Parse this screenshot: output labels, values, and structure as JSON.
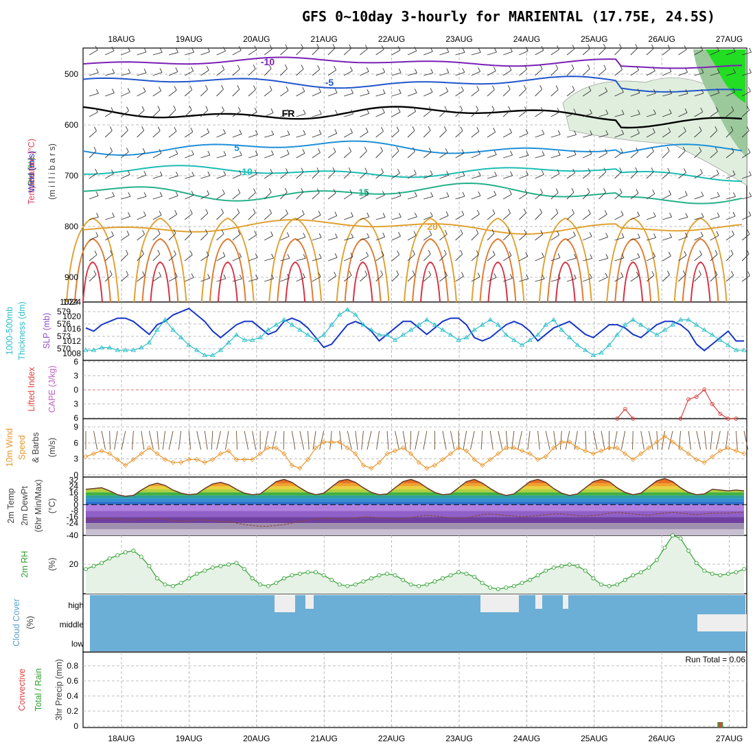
{
  "title": "GFS 0~10day 3-hourly for MARIENTAL (17.75E, 24.5S)",
  "days": [
    "18AUG",
    "19AUG",
    "20AUG",
    "21AUG",
    "22AUG",
    "23AUG",
    "24AUG",
    "25AUG",
    "26AUG",
    "27AUG"
  ],
  "colors": {
    "grid": "#a8a8a8",
    "slp": "#1535c8",
    "thickness": "#2bbfc9",
    "lifted_index": "#d94040",
    "wind_speed": "#e8952a",
    "wind_barb": "#6b4a2a",
    "rh": "#2e9e2e",
    "rh_fill": "#e6f2e6",
    "cloud": "#6baed6",
    "cloud_gap": "#eeeeee"
  },
  "panels": {
    "upper": {
      "labels": [
        "RH (%)",
        "Temperature (°C)",
        "Wind (m/s)",
        "(m i l l i b a r s)"
      ],
      "label_colors": [
        "#20a020",
        "#e0405a",
        "#3030c0",
        "#404040"
      ],
      "yticks": [
        "500",
        "600",
        "700",
        "800",
        "900",
        "1024"
      ],
      "contours": [
        {
          "label": "-10",
          "color": "#7a1fb5",
          "level": -10
        },
        {
          "label": "-5",
          "color": "#1f55cc",
          "level": -5
        },
        {
          "label": "FR",
          "color": "#000000",
          "level": 0
        },
        {
          "label": "5",
          "color": "#1e8fd8",
          "level": 5
        },
        {
          "label": "10",
          "color": "#1abdb5",
          "level": 10
        },
        {
          "label": "15",
          "color": "#22b088",
          "level": 15
        },
        {
          "label": "20",
          "color": "#e0a030",
          "level": 20
        }
      ]
    },
    "slp": {
      "labels": [
        "1000-500mb",
        "Thickness (dm)",
        "SLP (mb)"
      ],
      "label_colors": [
        "#2bbfc9",
        "#2bbfc9",
        "#9050c0"
      ],
      "left_ticks": [
        "579",
        "576",
        "573",
        "570"
      ],
      "right_ticks": [
        "1020",
        "1016",
        "1012",
        "1008"
      ],
      "top_tick": "1024"
    },
    "cape": {
      "labels": [
        "Lifted Index",
        "CAPE (J/kg)"
      ],
      "label_colors": [
        "#e04040",
        "#c060c0"
      ],
      "yticks": [
        "6",
        "3",
        "0",
        "3",
        "6"
      ]
    },
    "wind": {
      "labels": [
        "10m Wind",
        "Speed",
        "& Barbs",
        "(m/s)"
      ],
      "label_colors": [
        "#e8952a",
        "#e8952a",
        "#404040",
        "#404040"
      ],
      "yticks": [
        "9",
        "6",
        "3",
        "0"
      ]
    },
    "temp": {
      "labels": [
        "2m Temp",
        "2m DewPt",
        "(6hr Min/Max)",
        "(°C)"
      ],
      "label_colors": [
        "#404040",
        "#404040",
        "#404040",
        "#404040"
      ],
      "yticks": [
        "32",
        "24",
        "16",
        "8",
        "0",
        "-8",
        "-16",
        "-24",
        "-40"
      ]
    },
    "rh": {
      "labels": [
        "2m RH",
        "(%)"
      ],
      "label_colors": [
        "#2e9e2e",
        "#404040"
      ],
      "yticks": [
        "20"
      ]
    },
    "cloud": {
      "labels": [
        "Cloud Cover",
        "(%)"
      ],
      "label_colors": [
        "#5aa0d0",
        "#404040"
      ],
      "levels": [
        "high",
        "middle",
        "low"
      ]
    },
    "precip": {
      "labels": [
        "3hr Precip (mm)",
        "Total / Rain",
        "Convective"
      ],
      "label_colors": [
        "#404040",
        "#2e9e2e",
        "#e04040"
      ],
      "yticks": [
        "0.8",
        "0.6",
        "0.4",
        "0.2",
        "0"
      ],
      "run_total": "Run Total = 0.06"
    }
  },
  "chart_data": [
    {
      "type": "line",
      "name": "SLP (mb)",
      "x_unit": "3-hourly step from start",
      "series": [
        {
          "name": "SLP (mb)",
          "values": [
            1016,
            1015,
            1017,
            1018,
            1019,
            1019,
            1018,
            1016,
            1014,
            1017,
            1018,
            1020,
            1021,
            1022,
            1020,
            1018,
            1015,
            1013,
            1015,
            1017,
            1018,
            1018,
            1016,
            1014,
            1015,
            1018,
            1019,
            1018,
            1016,
            1013,
            1010,
            1011,
            1014,
            1017,
            1018,
            1017,
            1015,
            1012,
            1014,
            1016,
            1018,
            1018,
            1016,
            1014,
            1016,
            1018,
            1019,
            1019,
            1017,
            1013,
            1012,
            1013,
            1015,
            1017,
            1018,
            1017,
            1015,
            1012,
            1014,
            1016,
            1017,
            1018,
            1016,
            1014,
            1013,
            1015,
            1017,
            1017,
            1016,
            1014,
            1013,
            1015,
            1017,
            1018,
            1018,
            1017,
            1015,
            1011,
            1009,
            1011,
            1013,
            1015,
            1012,
            1012
          ]
        }
      ],
      "ylim": [
        1006,
        1024
      ]
    },
    {
      "type": "line",
      "name": "1000-500mb Thickness (dm)",
      "series": [
        {
          "name": "Thickness (dm)",
          "values": [
            571,
            571,
            571.5,
            571.5,
            571,
            571,
            571,
            571.5,
            572.5,
            575,
            577,
            575,
            573.5,
            572,
            571,
            570,
            570,
            571,
            572.5,
            574,
            573,
            573,
            573.5,
            575,
            576,
            577,
            576,
            575,
            574,
            573,
            574,
            576,
            578,
            579,
            578,
            576,
            575,
            574,
            574,
            573,
            574,
            575,
            576,
            577,
            576,
            575,
            574,
            573,
            573.5,
            575,
            576,
            577,
            576,
            574,
            573,
            572,
            573,
            574,
            576,
            577,
            575,
            573.5,
            572,
            571,
            570,
            570.5,
            572,
            574,
            576,
            577,
            576,
            575,
            574,
            575,
            576,
            577,
            577,
            576,
            575,
            574,
            573,
            572,
            571,
            571
          ]
        }
      ],
      "ylim": [
        569,
        580.5
      ]
    },
    {
      "type": "line",
      "name": "Lifted Index",
      "series": [
        {
          "name": "Lifted Index",
          "values": [
            null,
            null,
            null,
            null,
            null,
            null,
            null,
            null,
            null,
            null,
            null,
            null,
            null,
            null,
            null,
            null,
            null,
            null,
            null,
            null,
            null,
            null,
            null,
            null,
            null,
            null,
            null,
            null,
            null,
            null,
            null,
            null,
            null,
            null,
            null,
            null,
            null,
            null,
            null,
            null,
            null,
            null,
            null,
            null,
            null,
            null,
            null,
            null,
            null,
            null,
            null,
            null,
            null,
            null,
            null,
            null,
            null,
            null,
            null,
            null,
            null,
            null,
            null,
            null,
            null,
            null,
            null,
            6,
            4,
            6,
            null,
            null,
            null,
            null,
            null,
            6,
            2,
            1.5,
            0,
            3,
            5,
            6,
            6,
            null
          ]
        }
      ],
      "ylim": [
        -6,
        6
      ]
    },
    {
      "type": "line",
      "name": "10m Wind Speed (m/s)",
      "series": [
        {
          "name": "10m Wind Speed",
          "values": [
            3.5,
            4,
            4.5,
            4,
            3,
            2,
            3,
            4,
            5,
            4,
            3,
            2.5,
            2.5,
            3,
            3,
            2.5,
            3,
            4,
            4.5,
            3,
            3,
            3,
            4,
            5,
            5,
            4,
            2,
            1.5,
            3,
            5,
            6,
            6,
            6,
            5,
            4,
            2,
            1.5,
            2.5,
            4,
            4.5,
            5,
            4,
            2.5,
            1.5,
            2,
            3,
            4,
            5,
            4.5,
            3,
            2,
            3,
            4,
            5,
            5,
            4.5,
            4,
            3,
            3.5,
            5,
            6,
            6,
            5,
            4.5,
            4,
            4.5,
            5,
            5,
            4,
            3,
            4,
            5,
            6,
            7,
            6,
            5,
            4,
            3,
            2.5,
            3.5,
            4.5,
            5,
            4.5,
            4
          ]
        }
      ],
      "ylim": [
        0,
        10
      ]
    },
    {
      "type": "area",
      "name": "2m Temp (°C)",
      "series": [
        {
          "name": "2m Temp",
          "values": [
            20,
            21,
            22,
            18,
            13,
            11,
            12,
            19,
            25,
            28,
            25,
            19,
            15,
            13,
            14,
            21,
            27,
            29,
            26,
            20,
            15,
            13,
            14,
            22,
            30,
            33,
            29,
            22,
            16,
            13,
            15,
            23,
            31,
            33,
            29,
            22,
            16,
            13,
            14,
            22,
            30,
            33,
            29,
            22,
            16,
            13,
            14,
            22,
            30,
            33,
            28,
            21,
            15,
            12,
            14,
            22,
            30,
            33,
            29,
            21,
            15,
            12,
            14,
            22,
            30,
            33,
            30,
            22,
            16,
            13,
            15,
            23,
            31,
            34,
            30,
            22,
            16,
            13,
            14,
            20,
            19,
            18,
            19,
            18
          ]
        },
        {
          "name": "2m DewPt",
          "values": [
            -20,
            -19,
            -18,
            -18,
            -19,
            -20,
            -20,
            -19,
            -18,
            -18,
            -19,
            -21,
            -22,
            -21,
            -20,
            -20,
            -21,
            -22,
            -22,
            -24,
            -26,
            -27,
            -28,
            -28,
            -27,
            -26,
            -24,
            -22,
            -20,
            -19,
            -18,
            -18,
            -19,
            -18,
            -17,
            -16,
            -16,
            -17,
            -18,
            -19,
            -18,
            -17,
            -15,
            -14,
            -15,
            -16,
            -17,
            -18,
            -17,
            -15,
            -13,
            -12,
            -13,
            -14,
            -15,
            -16,
            -15,
            -14,
            -13,
            -12,
            -12,
            -13,
            -14,
            -15,
            -14,
            -13,
            -11,
            -10,
            -11,
            -12,
            -13,
            -14,
            -12,
            -11,
            -10,
            -11,
            -12,
            -13,
            -12,
            -11,
            -11,
            -11,
            -10,
            -10
          ]
        }
      ],
      "ylim": [
        -40,
        36
      ]
    },
    {
      "type": "area",
      "name": "2m RH (%)",
      "series": [
        {
          "name": "2m RH",
          "values": [
            16,
            18,
            20,
            23,
            25,
            27,
            28,
            24,
            18,
            10,
            6,
            5,
            7,
            10,
            13,
            15,
            17,
            18,
            19,
            20,
            16,
            10,
            6,
            5,
            7,
            10,
            12,
            13,
            14,
            14,
            12,
            9,
            6,
            5,
            6,
            8,
            10,
            12,
            13,
            12,
            9,
            6,
            5,
            6,
            8,
            10,
            12,
            14,
            13,
            11,
            7,
            4,
            3,
            4,
            5,
            7,
            9,
            12,
            15,
            17,
            18,
            19,
            18,
            15,
            10,
            6,
            5,
            6,
            9,
            12,
            14,
            17,
            22,
            30,
            38,
            36,
            28,
            20,
            15,
            13,
            12,
            13,
            14,
            16
          ]
        }
      ],
      "ylim": [
        0,
        38
      ]
    },
    {
      "type": "bar",
      "name": "3hr Precip (mm)",
      "series": [
        {
          "name": "Total / Rain",
          "values": [
            0,
            0,
            0,
            0,
            0,
            0,
            0,
            0,
            0,
            0,
            0,
            0,
            0,
            0,
            0,
            0,
            0,
            0,
            0,
            0,
            0,
            0,
            0,
            0,
            0,
            0,
            0,
            0,
            0,
            0,
            0,
            0,
            0,
            0,
            0,
            0,
            0,
            0,
            0,
            0,
            0,
            0,
            0,
            0,
            0,
            0,
            0,
            0,
            0,
            0,
            0,
            0,
            0,
            0,
            0,
            0,
            0,
            0,
            0,
            0,
            0,
            0,
            0,
            0,
            0,
            0,
            0,
            0,
            0,
            0,
            0,
            0,
            0,
            0,
            0,
            0,
            0,
            0,
            0,
            0,
            0.06,
            0,
            0,
            0
          ]
        },
        {
          "name": "Convective",
          "values": [
            0,
            0,
            0,
            0,
            0,
            0,
            0,
            0,
            0,
            0,
            0,
            0,
            0,
            0,
            0,
            0,
            0,
            0,
            0,
            0,
            0,
            0,
            0,
            0,
            0,
            0,
            0,
            0,
            0,
            0,
            0,
            0,
            0,
            0,
            0,
            0,
            0,
            0,
            0,
            0,
            0,
            0,
            0,
            0,
            0,
            0,
            0,
            0,
            0,
            0,
            0,
            0,
            0,
            0,
            0,
            0,
            0,
            0,
            0,
            0,
            0,
            0,
            0,
            0,
            0,
            0,
            0,
            0,
            0,
            0,
            0,
            0,
            0,
            0,
            0,
            0,
            0,
            0,
            0,
            0,
            0.03,
            0,
            0,
            0
          ]
        }
      ],
      "ylim": [
        0,
        0.9
      ]
    }
  ]
}
